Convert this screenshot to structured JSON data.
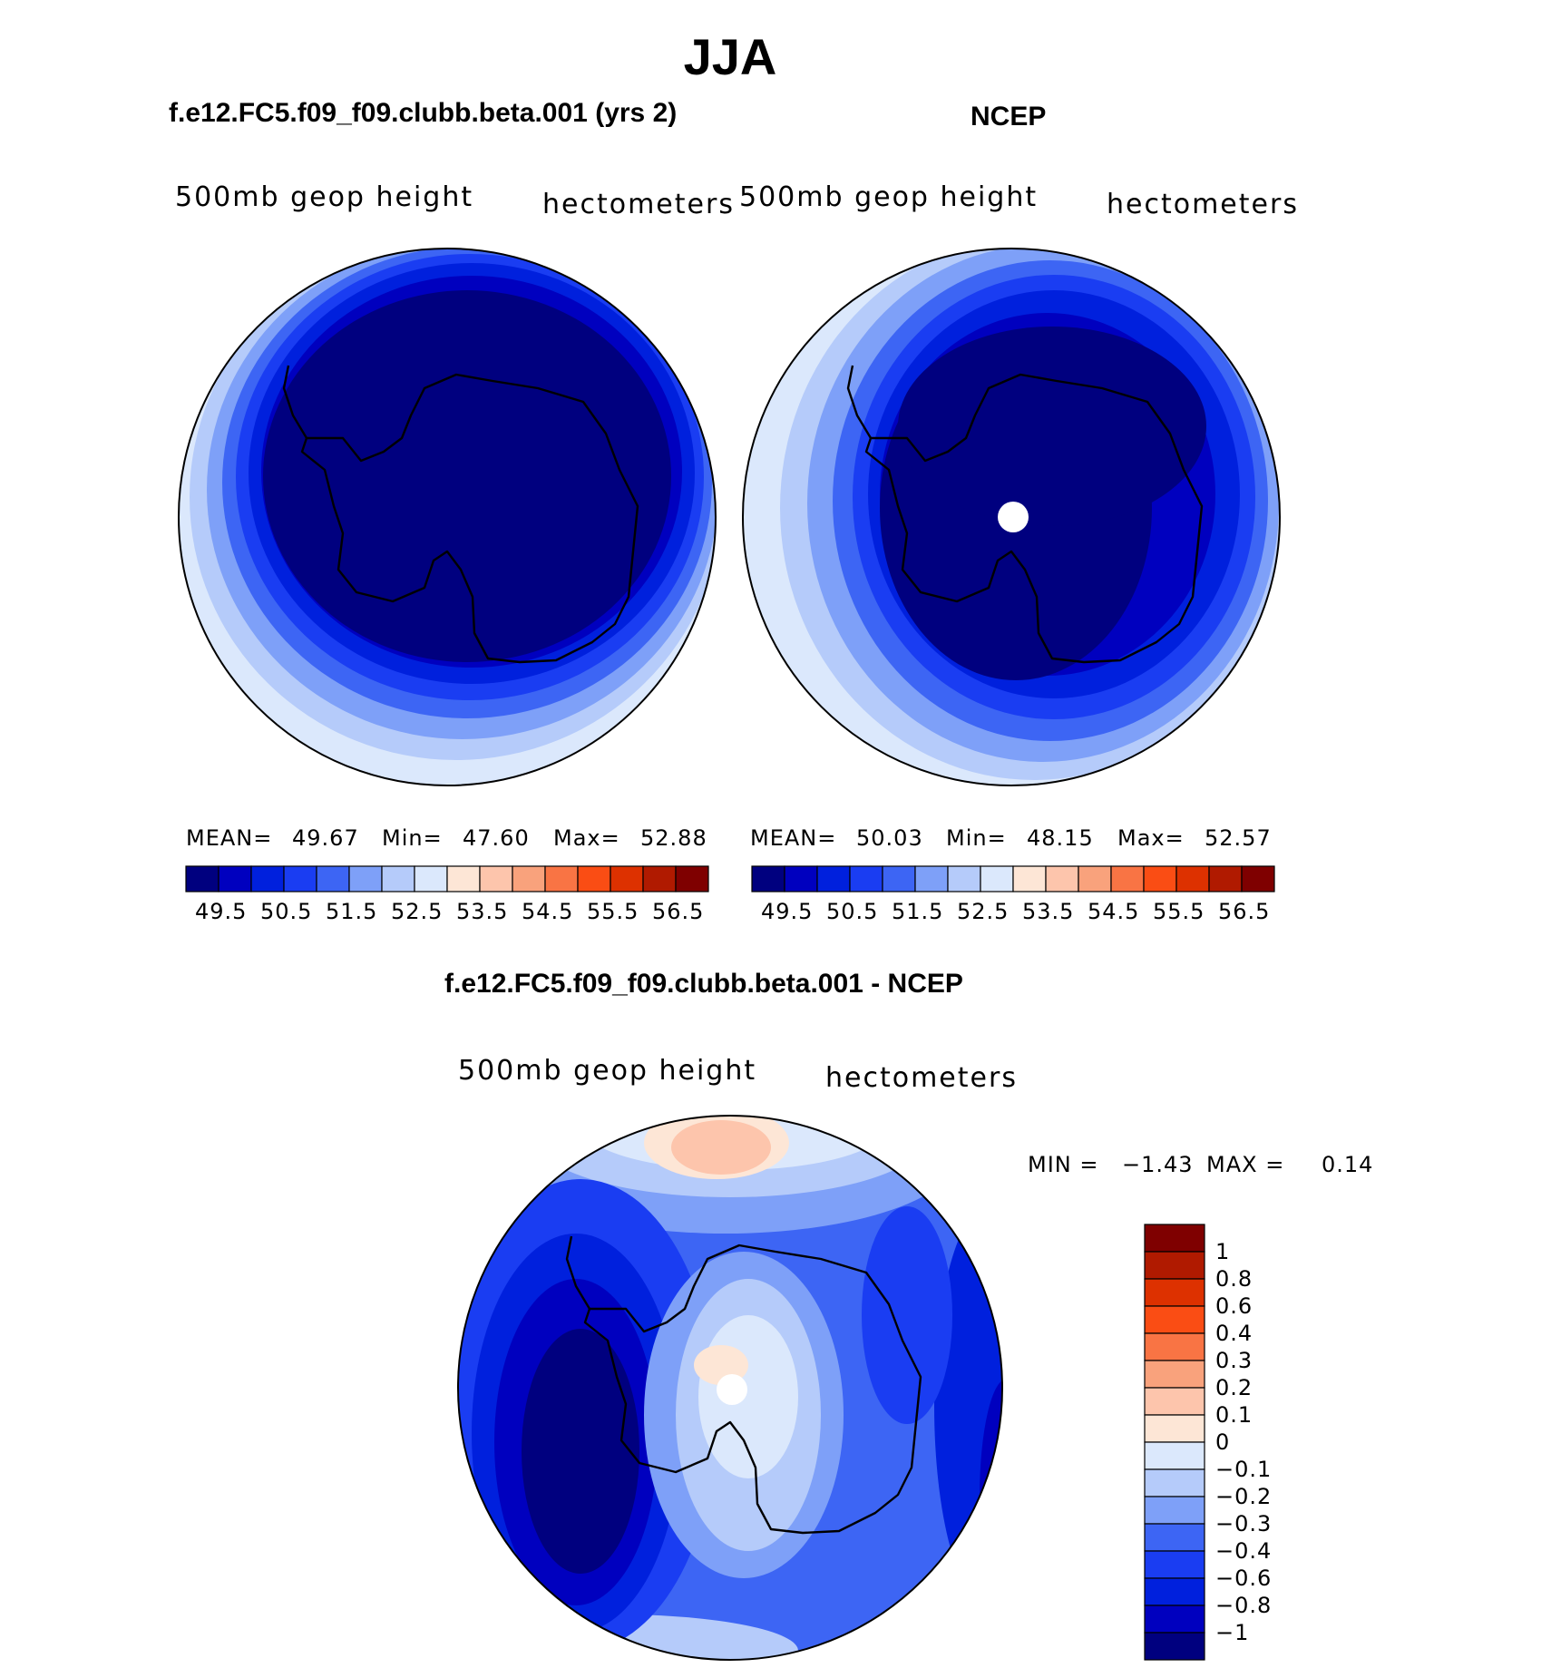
{
  "main_title": "JJA",
  "panels": [
    {
      "title": "f.e12.FC5.f09_f09.clubb.beta.001 (yrs 2)",
      "variable": "500mb  geop  height",
      "units": "hectometers",
      "mean_label": "MEAN=",
      "mean": "49.67",
      "min_label": "Min=",
      "min": "47.60",
      "max_label": "Max=",
      "max": "52.88"
    },
    {
      "title": "NCEP",
      "variable": "500mb  geop  height",
      "units": "hectometers",
      "mean_label": "MEAN=",
      "mean": "50.03",
      "min_label": "Min=",
      "min": "48.15",
      "max_label": "Max=",
      "max": "52.57"
    }
  ],
  "difference": {
    "title": "f.e12.FC5.f09_f09.clubb.beta.001 - NCEP",
    "variable": "500mb  geop  height",
    "units": "hectometers",
    "min_label": "MIN =",
    "min": "−1.43",
    "max_label": "MAX =",
    "max": "0.14"
  },
  "colorbar_abs": {
    "colors": [
      "#00007f",
      "#0000bf",
      "#0020dd",
      "#1a3df2",
      "#3d65f4",
      "#7ea0f8",
      "#b5cbfa",
      "#dbe8fc",
      "#fde6d6",
      "#fdc5ac",
      "#f9a27c",
      "#f97444",
      "#fa4d14",
      "#dd3100",
      "#b01a00",
      "#7f0000"
    ],
    "ticks": [
      "49.5",
      "50.5",
      "51.5",
      "52.5",
      "53.5",
      "54.5",
      "55.5",
      "56.5"
    ]
  },
  "colorbar_diff": {
    "colors_top_to_bottom": [
      "#7f0000",
      "#b01a00",
      "#dd3100",
      "#fa4d14",
      "#f97444",
      "#f9a27c",
      "#fdc5ac",
      "#fde6d6",
      "#dbe8fc",
      "#b5cbfa",
      "#7ea0f8",
      "#3d65f4",
      "#1a3df2",
      "#0020dd",
      "#0000bf",
      "#00007f"
    ],
    "ticks_top_to_bottom": [
      "1",
      "0.8",
      "0.6",
      "0.4",
      "0.3",
      "0.2",
      "0.1",
      "0",
      "−0.1",
      "−0.2",
      "−0.3",
      "−0.4",
      "−0.6",
      "−0.8",
      "−1"
    ]
  }
}
